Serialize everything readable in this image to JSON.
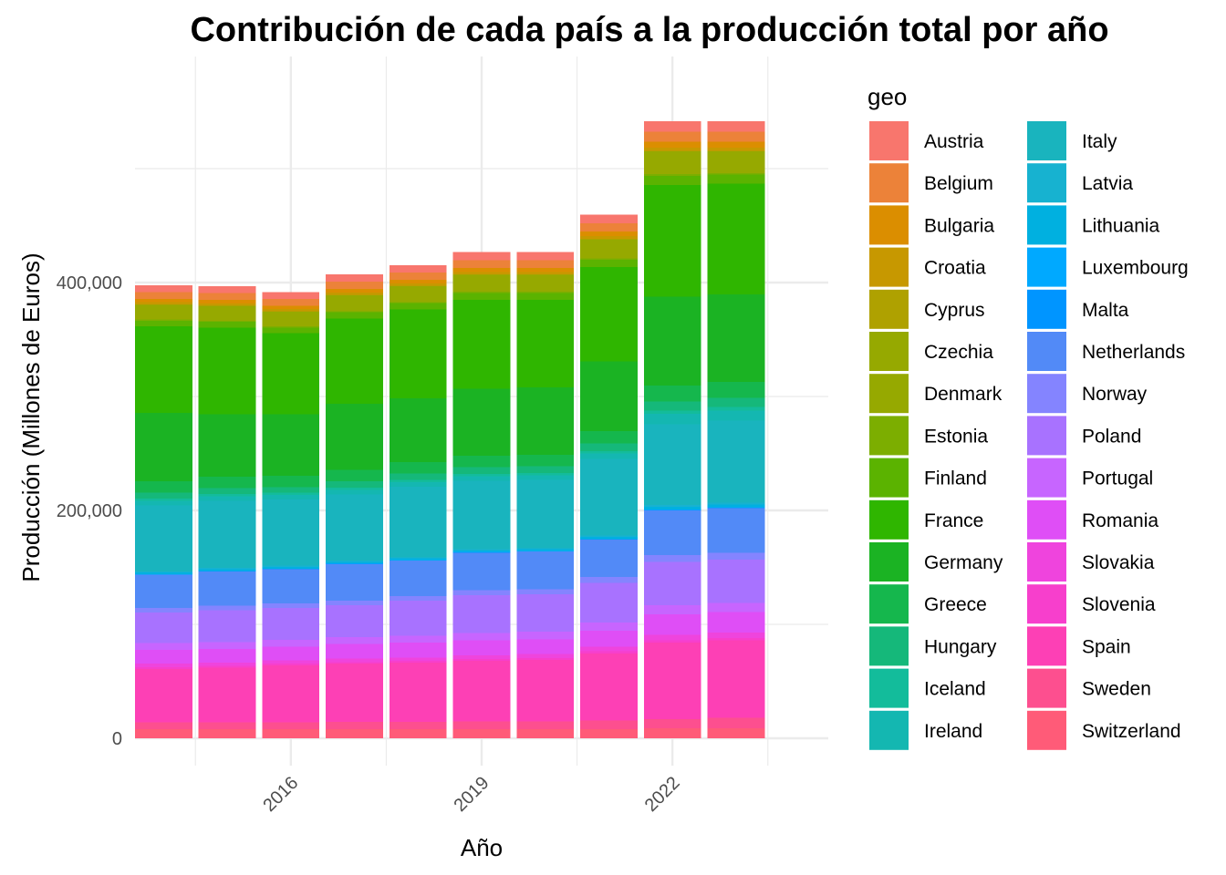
{
  "chart_data": {
    "type": "bar",
    "stacked": true,
    "title": "Contribución de cada país a la producción total por año",
    "xlabel": "Año",
    "ylabel": "Producción (Millones de Euros)",
    "ylim": [
      0,
      560000
    ],
    "y_ticks": [
      0,
      200000,
      400000
    ],
    "y_tick_labels": [
      "0",
      "200,000",
      "400,000"
    ],
    "x_ticks": [
      2016,
      2019,
      2022
    ],
    "x_tick_labels": [
      "2016",
      "2019",
      "2022"
    ],
    "x_range": [
      2013.55,
      2024.45
    ],
    "categories": [
      2014,
      2015,
      2016,
      2017,
      2018,
      2019,
      2020,
      2021,
      2022,
      2023
    ],
    "legend_title": "geo",
    "legend_position": "right",
    "series": [
      {
        "name": "Austria",
        "color": "#F8766D",
        "values": [
          6000,
          6000,
          6000,
          6500,
          6500,
          7000,
          7000,
          7500,
          9000,
          9000
        ]
      },
      {
        "name": "Belgium",
        "color": "#EC8239",
        "values": [
          6000,
          6000,
          6000,
          6500,
          6500,
          7000,
          7000,
          7500,
          9000,
          9000
        ]
      },
      {
        "name": "Bulgaria",
        "color": "#DB8E00",
        "values": [
          3000,
          3000,
          3000,
          3000,
          3000,
          3500,
          3500,
          4000,
          5000,
          5000
        ]
      },
      {
        "name": "Croatia",
        "color": "#C79800",
        "values": [
          2000,
          2000,
          2000,
          2000,
          2000,
          2000,
          2000,
          2500,
          3000,
          3000
        ]
      },
      {
        "name": "Cyprus",
        "color": "#AFA100",
        "values": [
          300,
          300,
          300,
          300,
          300,
          300,
          300,
          300,
          400,
          400
        ]
      },
      {
        "name": "Czechia",
        "color": "#96A900",
        "values": [
          5000,
          5000,
          5000,
          5500,
          5500,
          6000,
          6000,
          6500,
          8000,
          8000
        ]
      },
      {
        "name": "Denmark",
        "color": "#96A900",
        "values": [
          8000,
          8000,
          8000,
          8500,
          8500,
          9000,
          9000,
          10000,
          12000,
          11000
        ]
      },
      {
        "name": "Estonia",
        "color": "#7CAE00",
        "values": [
          1000,
          1000,
          1000,
          1000,
          1000,
          1000,
          1000,
          1200,
          1500,
          1500
        ]
      },
      {
        "name": "Finland",
        "color": "#5BB300",
        "values": [
          5000,
          5000,
          5000,
          5500,
          5500,
          6000,
          6000,
          6500,
          8000,
          8000
        ]
      },
      {
        "name": "France",
        "color": "#2FB600",
        "values": [
          76000,
          76000,
          71000,
          75000,
          78000,
          78000,
          77000,
          83000,
          98000,
          97000
        ]
      },
      {
        "name": "Germany",
        "color": "#1BB323",
        "values": [
          60000,
          55000,
          54000,
          58000,
          56000,
          59000,
          59000,
          61000,
          78000,
          77000
        ]
      },
      {
        "name": "Greece",
        "color": "#15B74D",
        "values": [
          10000,
          10000,
          10000,
          10000,
          10000,
          10000,
          10000,
          11000,
          14000,
          14000
        ]
      },
      {
        "name": "Hungary",
        "color": "#15B87A",
        "values": [
          5000,
          5000,
          5000,
          5500,
          5500,
          6000,
          6000,
          6500,
          8000,
          8000
        ]
      },
      {
        "name": "Iceland",
        "color": "#13BC9B",
        "values": [
          2000,
          2000,
          2000,
          2000,
          2000,
          2000,
          2000,
          2000,
          3000,
          3000
        ]
      },
      {
        "name": "Ireland",
        "color": "#14B7B1",
        "values": [
          4000,
          4000,
          4000,
          4000,
          4000,
          4000,
          4000,
          5000,
          9000,
          9000
        ]
      },
      {
        "name": "Italy",
        "color": "#19B4BE",
        "values": [
          58000,
          59000,
          58000,
          58000,
          62000,
          60000,
          60000,
          67000,
          71000,
          72000
        ]
      },
      {
        "name": "Latvia",
        "color": "#17B2D0",
        "values": [
          1000,
          1000,
          1000,
          1000,
          1000,
          1000,
          1000,
          1200,
          1500,
          1500
        ]
      },
      {
        "name": "Lithuania",
        "color": "#00B0E0",
        "values": [
          1500,
          1500,
          1500,
          1500,
          1500,
          1500,
          1500,
          2000,
          2500,
          2500
        ]
      },
      {
        "name": "Luxembourg",
        "color": "#00A9FF",
        "values": [
          300,
          300,
          300,
          300,
          300,
          300,
          300,
          300,
          400,
          400
        ]
      },
      {
        "name": "Malta",
        "color": "#0095FF",
        "values": [
          200,
          200,
          200,
          200,
          200,
          200,
          200,
          200,
          300,
          300
        ]
      },
      {
        "name": "Netherlands",
        "color": "#528AF7",
        "values": [
          29000,
          30000,
          30000,
          32000,
          31000,
          33000,
          33000,
          33000,
          39000,
          39000
        ]
      },
      {
        "name": "Norway",
        "color": "#8484FF",
        "values": [
          4000,
          4000,
          4000,
          4000,
          4000,
          4500,
          4500,
          5000,
          6000,
          6000
        ]
      },
      {
        "name": "Poland",
        "color": "#A872FF",
        "values": [
          27000,
          28000,
          28000,
          28000,
          31000,
          33000,
          33000,
          35000,
          38000,
          38000
        ]
      },
      {
        "name": "Portugal",
        "color": "#C765FF",
        "values": [
          6000,
          6000,
          6000,
          6000,
          6000,
          6500,
          6500,
          7000,
          8000,
          8000
        ]
      },
      {
        "name": "Romania",
        "color": "#DF4EF6",
        "values": [
          12000,
          12000,
          12000,
          13000,
          13000,
          13000,
          13000,
          14000,
          18000,
          18000
        ]
      },
      {
        "name": "Slovakia",
        "color": "#EF44DD",
        "values": [
          3000,
          3000,
          3000,
          3000,
          3000,
          3500,
          3500,
          4000,
          5000,
          5000
        ]
      },
      {
        "name": "Slovenia",
        "color": "#F73FCC",
        "values": [
          1500,
          1500,
          1500,
          1500,
          1500,
          1500,
          1500,
          2000,
          2000,
          2000
        ]
      },
      {
        "name": "Spain",
        "color": "#FD40B5",
        "values": [
          47000,
          48000,
          50000,
          51000,
          52000,
          53000,
          54000,
          59000,
          67000,
          68000
        ]
      },
      {
        "name": "Sweden",
        "color": "#FD4F8F",
        "values": [
          6000,
          6000,
          6000,
          6500,
          6500,
          7000,
          7000,
          7500,
          8000,
          9000
        ]
      },
      {
        "name": "Switzerland",
        "color": "#FF5B78",
        "values": [
          8000,
          8000,
          8000,
          8000,
          8000,
          8000,
          8000,
          8000,
          9000,
          9000
        ]
      }
    ]
  }
}
